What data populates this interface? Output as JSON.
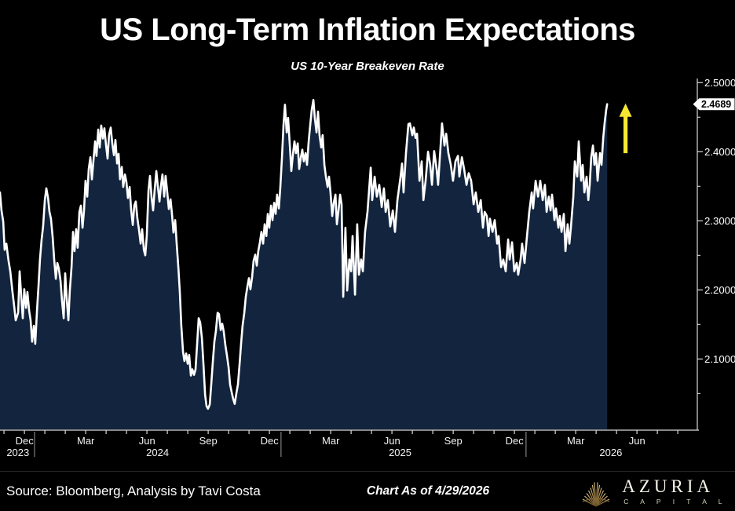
{
  "header": {
    "title": "US Long-Term Inflation Expectations",
    "subtitle": "US 10-Year Breakeven Rate"
  },
  "footer": {
    "source": "Source: Bloomberg, Analysis by Tavi Costa",
    "as_of": "Chart As of 4/29/2026",
    "logo": {
      "name": "AZURIA",
      "sub": "C A P I T A L",
      "gold": "#c9a35e"
    }
  },
  "chart_data": {
    "type": "area",
    "title": "US 10-Year Breakeven Rate",
    "x_domain": [
      2023.817,
      2026.663
    ],
    "y_domain": [
      1.997,
      2.506
    ],
    "grid": "off",
    "line_color": "#ffffff",
    "fill_color": "#13253e",
    "axis_color": "#d9d9d9",
    "background": "#000000",
    "y_ticks": [
      {
        "v": 2.5,
        "label": "2.5000"
      },
      {
        "v": 2.4,
        "label": "2.4000"
      },
      {
        "v": 2.3,
        "label": "2.3000"
      },
      {
        "v": 2.2,
        "label": "2.2000"
      },
      {
        "v": 2.1,
        "label": "2.1000"
      }
    ],
    "y_minor_ticks": [
      2.05,
      2.15,
      2.25,
      2.35,
      2.45
    ],
    "x_ticks": [
      {
        "t": 2023.917,
        "label": "Dec"
      },
      {
        "t": 2024.167,
        "label": "Mar"
      },
      {
        "t": 2024.417,
        "label": "Jun"
      },
      {
        "t": 2024.667,
        "label": "Sep"
      },
      {
        "t": 2024.917,
        "label": "Dec"
      },
      {
        "t": 2025.167,
        "label": "Mar"
      },
      {
        "t": 2025.417,
        "label": "Jun"
      },
      {
        "t": 2025.667,
        "label": "Sep"
      },
      {
        "t": 2025.917,
        "label": "Dec"
      },
      {
        "t": 2026.167,
        "label": "Mar"
      },
      {
        "t": 2026.417,
        "label": "Jun"
      }
    ],
    "year_labels": [
      {
        "t": 2023.89,
        "label": "2023"
      },
      {
        "t": 2024.46,
        "label": "2024"
      },
      {
        "t": 2025.45,
        "label": "2025"
      },
      {
        "t": 2026.31,
        "label": "2026"
      }
    ],
    "year_dividers": [
      2023.958,
      2024.964,
      2025.964
    ],
    "last_value": 2.4689,
    "last_value_label": "2.4689",
    "annotation_arrow": {
      "t": 2026.37,
      "v_from": 2.398,
      "v_to": 2.47,
      "color": "#f7e733"
    },
    "points": [
      [
        2023.817,
        2.341
      ],
      [
        2023.823,
        2.315
      ],
      [
        2023.83,
        2.299
      ],
      [
        2023.836,
        2.258
      ],
      [
        2023.843,
        2.267
      ],
      [
        2023.852,
        2.242
      ],
      [
        2023.859,
        2.227
      ],
      [
        2023.868,
        2.197
      ],
      [
        2023.875,
        2.176
      ],
      [
        2023.881,
        2.156
      ],
      [
        2023.891,
        2.167
      ],
      [
        2023.897,
        2.227
      ],
      [
        2023.904,
        2.19
      ],
      [
        2023.91,
        2.159
      ],
      [
        2023.916,
        2.201
      ],
      [
        2023.923,
        2.174
      ],
      [
        2023.929,
        2.197
      ],
      [
        2023.936,
        2.17
      ],
      [
        2023.942,
        2.156
      ],
      [
        2023.948,
        2.125
      ],
      [
        2023.955,
        2.148
      ],
      [
        2023.961,
        2.122
      ],
      [
        2023.968,
        2.17
      ],
      [
        2023.974,
        2.205
      ],
      [
        2023.98,
        2.244
      ],
      [
        2023.987,
        2.273
      ],
      [
        2023.993,
        2.292
      ],
      [
        2024.0,
        2.33
      ],
      [
        2024.006,
        2.347
      ],
      [
        2024.013,
        2.333
      ],
      [
        2024.019,
        2.313
      ],
      [
        2024.025,
        2.303
      ],
      [
        2024.032,
        2.276
      ],
      [
        2024.038,
        2.244
      ],
      [
        2024.045,
        2.216
      ],
      [
        2024.051,
        2.239
      ],
      [
        2024.057,
        2.231
      ],
      [
        2024.064,
        2.213
      ],
      [
        2024.07,
        2.185
      ],
      [
        2024.077,
        2.159
      ],
      [
        2024.083,
        2.224
      ],
      [
        2024.089,
        2.188
      ],
      [
        2024.096,
        2.156
      ],
      [
        2024.102,
        2.199
      ],
      [
        2024.109,
        2.233
      ],
      [
        2024.115,
        2.284
      ],
      [
        2024.121,
        2.256
      ],
      [
        2024.128,
        2.288
      ],
      [
        2024.134,
        2.261
      ],
      [
        2024.141,
        2.313
      ],
      [
        2024.147,
        2.322
      ],
      [
        2024.154,
        2.29
      ],
      [
        2024.16,
        2.315
      ],
      [
        2024.166,
        2.358
      ],
      [
        2024.173,
        2.335
      ],
      [
        2024.179,
        2.375
      ],
      [
        2024.186,
        2.392
      ],
      [
        2024.192,
        2.36
      ],
      [
        2024.198,
        2.386
      ],
      [
        2024.205,
        2.415
      ],
      [
        2024.211,
        2.394
      ],
      [
        2024.218,
        2.432
      ],
      [
        2024.224,
        2.406
      ],
      [
        2024.23,
        2.438
      ],
      [
        2024.237,
        2.419
      ],
      [
        2024.243,
        2.434
      ],
      [
        2024.25,
        2.409
      ],
      [
        2024.256,
        2.39
      ],
      [
        2024.262,
        2.424
      ],
      [
        2024.269,
        2.435
      ],
      [
        2024.275,
        2.413
      ],
      [
        2024.282,
        2.395
      ],
      [
        2024.288,
        2.417
      ],
      [
        2024.295,
        2.383
      ],
      [
        2024.301,
        2.397
      ],
      [
        2024.307,
        2.36
      ],
      [
        2024.314,
        2.378
      ],
      [
        2024.32,
        2.349
      ],
      [
        2024.327,
        2.367
      ],
      [
        2024.333,
        2.356
      ],
      [
        2024.339,
        2.333
      ],
      [
        2024.346,
        2.349
      ],
      [
        2024.352,
        2.317
      ],
      [
        2024.359,
        2.294
      ],
      [
        2024.365,
        2.322
      ],
      [
        2024.371,
        2.328
      ],
      [
        2024.378,
        2.303
      ],
      [
        2024.384,
        2.288
      ],
      [
        2024.391,
        2.267
      ],
      [
        2024.397,
        2.288
      ],
      [
        2024.404,
        2.258
      ],
      [
        2024.41,
        2.25
      ],
      [
        2024.416,
        2.278
      ],
      [
        2024.423,
        2.344
      ],
      [
        2024.429,
        2.365
      ],
      [
        2024.436,
        2.333
      ],
      [
        2024.442,
        2.315
      ],
      [
        2024.448,
        2.344
      ],
      [
        2024.455,
        2.372
      ],
      [
        2024.461,
        2.351
      ],
      [
        2024.468,
        2.328
      ],
      [
        2024.474,
        2.351
      ],
      [
        2024.48,
        2.367
      ],
      [
        2024.487,
        2.335
      ],
      [
        2024.493,
        2.365
      ],
      [
        2024.5,
        2.34
      ],
      [
        2024.506,
        2.317
      ],
      [
        2024.513,
        2.331
      ],
      [
        2024.519,
        2.31
      ],
      [
        2024.525,
        2.283
      ],
      [
        2024.532,
        2.301
      ],
      [
        2024.538,
        2.267
      ],
      [
        2024.545,
        2.233
      ],
      [
        2024.551,
        2.197
      ],
      [
        2024.557,
        2.148
      ],
      [
        2024.564,
        2.11
      ],
      [
        2024.57,
        2.097
      ],
      [
        2024.577,
        2.108
      ],
      [
        2024.583,
        2.093
      ],
      [
        2024.589,
        2.106
      ],
      [
        2024.596,
        2.076
      ],
      [
        2024.602,
        2.085
      ],
      [
        2024.609,
        2.077
      ],
      [
        2024.615,
        2.085
      ],
      [
        2024.621,
        2.119
      ],
      [
        2024.628,
        2.159
      ],
      [
        2024.634,
        2.153
      ],
      [
        2024.641,
        2.131
      ],
      [
        2024.647,
        2.094
      ],
      [
        2024.654,
        2.048
      ],
      [
        2024.66,
        2.032
      ],
      [
        2024.666,
        2.028
      ],
      [
        2024.673,
        2.034
      ],
      [
        2024.679,
        2.063
      ],
      [
        2024.686,
        2.097
      ],
      [
        2024.692,
        2.125
      ],
      [
        2024.698,
        2.14
      ],
      [
        2024.705,
        2.167
      ],
      [
        2024.711,
        2.165
      ],
      [
        2024.718,
        2.142
      ],
      [
        2024.724,
        2.151
      ],
      [
        2024.73,
        2.14
      ],
      [
        2024.737,
        2.119
      ],
      [
        2024.743,
        2.106
      ],
      [
        2024.75,
        2.088
      ],
      [
        2024.756,
        2.063
      ],
      [
        2024.763,
        2.051
      ],
      [
        2024.769,
        2.042
      ],
      [
        2024.775,
        2.035
      ],
      [
        2024.782,
        2.051
      ],
      [
        2024.788,
        2.063
      ],
      [
        2024.795,
        2.094
      ],
      [
        2024.801,
        2.122
      ],
      [
        2024.807,
        2.148
      ],
      [
        2024.814,
        2.167
      ],
      [
        2024.82,
        2.19
      ],
      [
        2024.827,
        2.205
      ],
      [
        2024.833,
        2.217
      ],
      [
        2024.839,
        2.201
      ],
      [
        2024.846,
        2.219
      ],
      [
        2024.852,
        2.242
      ],
      [
        2024.859,
        2.251
      ],
      [
        2024.865,
        2.235
      ],
      [
        2024.871,
        2.256
      ],
      [
        2024.878,
        2.269
      ],
      [
        2024.884,
        2.284
      ],
      [
        2024.891,
        2.267
      ],
      [
        2024.897,
        2.295
      ],
      [
        2024.904,
        2.278
      ],
      [
        2024.91,
        2.31
      ],
      [
        2024.916,
        2.29
      ],
      [
        2024.923,
        2.322
      ],
      [
        2024.929,
        2.301
      ],
      [
        2024.936,
        2.326
      ],
      [
        2024.942,
        2.31
      ],
      [
        2024.948,
        2.338
      ],
      [
        2024.955,
        2.318
      ],
      [
        2024.961,
        2.347
      ],
      [
        2024.968,
        2.392
      ],
      [
        2024.974,
        2.438
      ],
      [
        2024.98,
        2.468
      ],
      [
        2024.987,
        2.428
      ],
      [
        2024.993,
        2.449
      ],
      [
        2025.0,
        2.409
      ],
      [
        2025.006,
        2.372
      ],
      [
        2025.013,
        2.398
      ],
      [
        2025.019,
        2.415
      ],
      [
        2025.025,
        2.398
      ],
      [
        2025.032,
        2.412
      ],
      [
        2025.038,
        2.375
      ],
      [
        2025.045,
        2.392
      ],
      [
        2025.051,
        2.403
      ],
      [
        2025.057,
        2.386
      ],
      [
        2025.064,
        2.398
      ],
      [
        2025.07,
        2.381
      ],
      [
        2025.077,
        2.415
      ],
      [
        2025.083,
        2.438
      ],
      [
        2025.089,
        2.46
      ],
      [
        2025.096,
        2.475
      ],
      [
        2025.102,
        2.449
      ],
      [
        2025.109,
        2.428
      ],
      [
        2025.115,
        2.458
      ],
      [
        2025.121,
        2.424
      ],
      [
        2025.128,
        2.406
      ],
      [
        2025.134,
        2.424
      ],
      [
        2025.141,
        2.381
      ],
      [
        2025.147,
        2.364
      ],
      [
        2025.154,
        2.349
      ],
      [
        2025.16,
        2.364
      ],
      [
        2025.166,
        2.341
      ],
      [
        2025.173,
        2.307
      ],
      [
        2025.179,
        2.326
      ],
      [
        2025.186,
        2.338
      ],
      [
        2025.192,
        2.295
      ],
      [
        2025.198,
        2.313
      ],
      [
        2025.205,
        2.338
      ],
      [
        2025.211,
        2.324
      ],
      [
        2025.218,
        2.19
      ],
      [
        2025.227,
        2.29
      ],
      [
        2025.234,
        2.199
      ],
      [
        2025.243,
        2.244
      ],
      [
        2025.25,
        2.227
      ],
      [
        2025.256,
        2.278
      ],
      [
        2025.266,
        2.193
      ],
      [
        2025.275,
        2.295
      ],
      [
        2025.282,
        2.222
      ],
      [
        2025.291,
        2.244
      ],
      [
        2025.298,
        2.227
      ],
      [
        2025.307,
        2.284
      ],
      [
        2025.317,
        2.313
      ],
      [
        2025.33,
        2.377
      ],
      [
        2025.336,
        2.33
      ],
      [
        2025.346,
        2.364
      ],
      [
        2025.355,
        2.335
      ],
      [
        2025.365,
        2.352
      ],
      [
        2025.375,
        2.32
      ],
      [
        2025.384,
        2.347
      ],
      [
        2025.391,
        2.313
      ],
      [
        2025.4,
        2.33
      ],
      [
        2025.41,
        2.292
      ],
      [
        2025.42,
        2.315
      ],
      [
        2025.429,
        2.284
      ],
      [
        2025.439,
        2.33
      ],
      [
        2025.452,
        2.364
      ],
      [
        2025.458,
        2.383
      ],
      [
        2025.464,
        2.341
      ],
      [
        2025.474,
        2.398
      ],
      [
        2025.484,
        2.44
      ],
      [
        2025.49,
        2.441
      ],
      [
        2025.5,
        2.424
      ],
      [
        2025.506,
        2.435
      ],
      [
        2025.513,
        2.42
      ],
      [
        2025.519,
        2.426
      ],
      [
        2025.529,
        2.358
      ],
      [
        2025.538,
        2.386
      ],
      [
        2025.545,
        2.33
      ],
      [
        2025.554,
        2.358
      ],
      [
        2025.564,
        2.4
      ],
      [
        2025.573,
        2.381
      ],
      [
        2025.58,
        2.352
      ],
      [
        2025.589,
        2.401
      ],
      [
        2025.599,
        2.375
      ],
      [
        2025.605,
        2.352
      ],
      [
        2025.615,
        2.407
      ],
      [
        2025.621,
        2.441
      ],
      [
        2025.631,
        2.409
      ],
      [
        2025.638,
        2.426
      ],
      [
        2025.647,
        2.398
      ],
      [
        2025.657,
        2.381
      ],
      [
        2025.666,
        2.358
      ],
      [
        2025.676,
        2.386
      ],
      [
        2025.686,
        2.394
      ],
      [
        2025.692,
        2.364
      ],
      [
        2025.702,
        2.392
      ],
      [
        2025.711,
        2.375
      ],
      [
        2025.721,
        2.352
      ],
      [
        2025.73,
        2.369
      ],
      [
        2025.74,
        2.358
      ],
      [
        2025.75,
        2.324
      ],
      [
        2025.759,
        2.341
      ],
      [
        2025.769,
        2.313
      ],
      [
        2025.779,
        2.33
      ],
      [
        2025.788,
        2.29
      ],
      [
        2025.795,
        2.313
      ],
      [
        2025.804,
        2.307
      ],
      [
        2025.811,
        2.278
      ],
      [
        2025.817,
        2.303
      ],
      [
        2025.827,
        2.284
      ],
      [
        2025.836,
        2.301
      ],
      [
        2025.846,
        2.267
      ],
      [
        2025.852,
        2.278
      ],
      [
        2025.862,
        2.233
      ],
      [
        2025.871,
        2.244
      ],
      [
        2025.881,
        2.227
      ],
      [
        2025.891,
        2.273
      ],
      [
        2025.897,
        2.244
      ],
      [
        2025.907,
        2.269
      ],
      [
        2025.916,
        2.227
      ],
      [
        2025.926,
        2.239
      ],
      [
        2025.932,
        2.222
      ],
      [
        2025.942,
        2.244
      ],
      [
        2025.948,
        2.267
      ],
      [
        2025.958,
        2.239
      ],
      [
        2025.968,
        2.278
      ],
      [
        2025.977,
        2.313
      ],
      [
        2025.987,
        2.341
      ],
      [
        2025.993,
        2.318
      ],
      [
        2026.003,
        2.358
      ],
      [
        2026.013,
        2.335
      ],
      [
        2026.022,
        2.358
      ],
      [
        2026.032,
        2.33
      ],
      [
        2026.041,
        2.352
      ],
      [
        2026.048,
        2.313
      ],
      [
        2026.057,
        2.335
      ],
      [
        2026.064,
        2.315
      ],
      [
        2026.07,
        2.338
      ],
      [
        2026.08,
        2.301
      ],
      [
        2026.086,
        2.318
      ],
      [
        2026.096,
        2.29
      ],
      [
        2026.102,
        2.307
      ],
      [
        2026.109,
        2.284
      ],
      [
        2026.118,
        2.31
      ],
      [
        2026.125,
        2.256
      ],
      [
        2026.134,
        2.295
      ],
      [
        2026.141,
        2.267
      ],
      [
        2026.147,
        2.29
      ],
      [
        2026.157,
        2.335
      ],
      [
        2026.163,
        2.386
      ],
      [
        2026.173,
        2.364
      ],
      [
        2026.179,
        2.415
      ],
      [
        2026.189,
        2.358
      ],
      [
        2026.195,
        2.381
      ],
      [
        2026.202,
        2.341
      ],
      [
        2026.211,
        2.364
      ],
      [
        2026.218,
        2.33
      ],
      [
        2026.224,
        2.352
      ],
      [
        2026.23,
        2.392
      ],
      [
        2026.237,
        2.409
      ],
      [
        2026.243,
        2.381
      ],
      [
        2026.25,
        2.398
      ],
      [
        2026.256,
        2.358
      ],
      [
        2026.266,
        2.398
      ],
      [
        2026.272,
        2.381
      ],
      [
        2026.279,
        2.42
      ],
      [
        2026.285,
        2.443
      ],
      [
        2026.291,
        2.46
      ],
      [
        2026.295,
        2.4689
      ]
    ]
  }
}
